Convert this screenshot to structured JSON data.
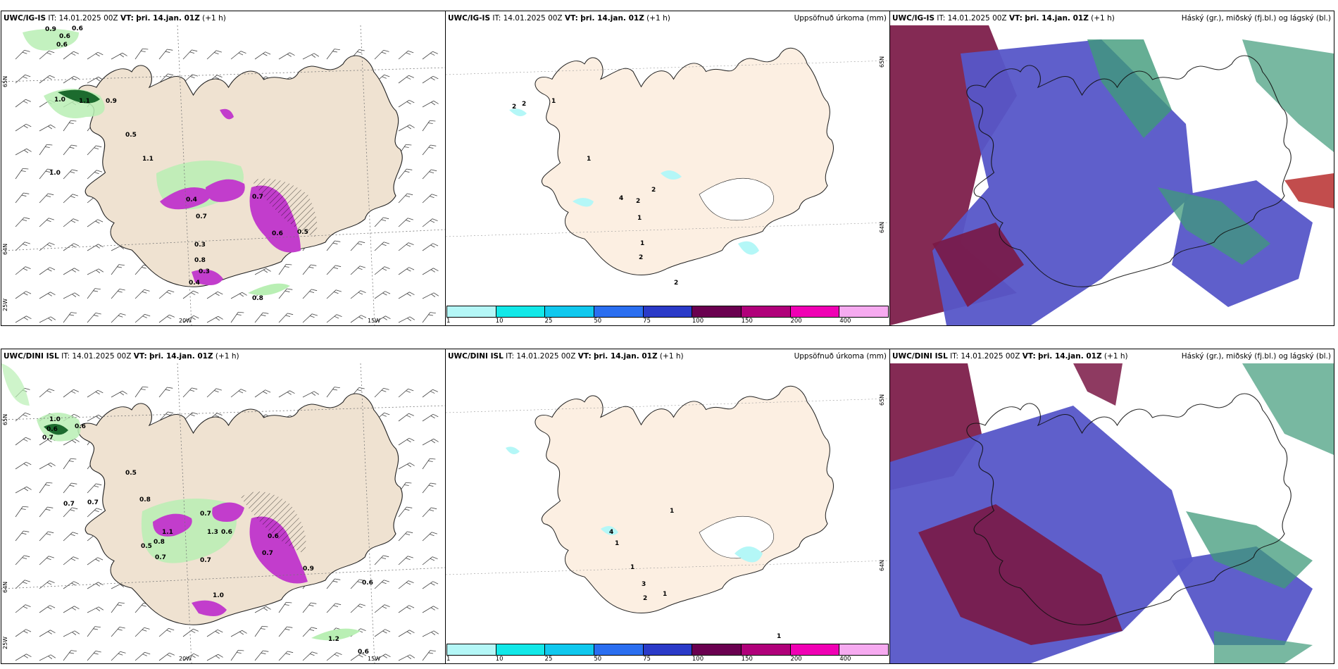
{
  "colors": {
    "land": "#efe2d1",
    "land_light": "#fcefe2",
    "coast": "#222222",
    "sea": "#ffffff",
    "green_light": "#b9efb4",
    "green_dark": "#1c6b2e",
    "magenta": "#c23dcc",
    "cloud_high": "#7a1845",
    "cloud_mid": "#5656c8",
    "cloud_low": "#3f9a79"
  },
  "panels": {
    "top_left": {
      "model": "UWC/IG-IS",
      "it_label": "IT:",
      "it_value": "14.01.2025 00Z",
      "vt_label": "VT:",
      "vt_value": "þri. 14.jan. 01Z",
      "offset": "(+1 h)",
      "grid": {
        "lat1": "65N",
        "lat2": "64N",
        "lon1": "20W",
        "lon2": "15W",
        "lon3": "25W"
      },
      "values": [
        "0.9",
        "0.6",
        "0.6",
        "0.6",
        "1.0",
        "1.1",
        "0.9",
        "0.5",
        "1.1",
        "1.0",
        "0.7",
        "0.3",
        "0.4",
        "0.7",
        "0.8",
        "0.6",
        "0.3",
        "0.5",
        "0.4",
        "0.8"
      ]
    },
    "top_mid": {
      "model": "UWC/IG-IS",
      "it_label": "IT:",
      "it_value": "14.01.2025 00Z",
      "vt_label": "VT:",
      "vt_value": "þri. 14.jan. 01Z",
      "offset": "(+1 h)",
      "field": "Uppsöfnuð úrkoma (mm)",
      "grid": {
        "lat1": "65N",
        "lat2": "64N"
      },
      "values": [
        "2",
        "2",
        "1",
        "1",
        "4",
        "2",
        "2",
        "1",
        "1",
        "2",
        "2"
      ]
    },
    "top_right": {
      "model": "UWC/IG-IS",
      "it_label": "IT:",
      "it_value": "14.01.2025 00Z",
      "vt_label": "VT:",
      "vt_value": "þri. 14.jan. 01Z",
      "offset": "(+1 h)",
      "field": "Háský (gr.), miðský (fj.bl.) og lágský (bl.)"
    },
    "bottom_left": {
      "model": "UWC/DINI ISL",
      "it_label": "IT:",
      "it_value": "14.01.2025 00Z",
      "vt_label": "VT:",
      "vt_value": "þri. 14.jan. 01Z",
      "offset": "(+1 h)",
      "grid": {
        "lat1": "65N",
        "lat2": "64N",
        "lon1": "20W",
        "lon2": "15W",
        "lon3": "25W"
      },
      "values": [
        "1.0",
        "0.6",
        "0.6",
        "0.7",
        "0.5",
        "0.7",
        "0.7",
        "0.8",
        "0.5",
        "0.8",
        "1.1",
        "0.7",
        "1.3",
        "0.6",
        "0.7",
        "0.6",
        "0.7",
        "0.7",
        "0.9",
        "1.0",
        "0.6",
        "1.2",
        "0.6"
      ]
    },
    "bottom_mid": {
      "model": "UWC/DINI ISL",
      "it_label": "IT:",
      "it_value": "14.01.2025 00Z",
      "vt_label": "VT:",
      "vt_value": "þri. 14.jan. 01Z",
      "offset": "(+1 h)",
      "field": "Uppsöfnuð úrkoma (mm)",
      "grid": {
        "lat1": "65N",
        "lat2": "64N"
      },
      "values": [
        "1",
        "4",
        "1",
        "1",
        "3",
        "2",
        "1",
        "1"
      ]
    },
    "bottom_right": {
      "model": "UWC/DINI ISL",
      "it_label": "IT:",
      "it_value": "14.01.2025 00Z",
      "vt_label": "VT:",
      "vt_value": "þri. 14.jan. 01Z",
      "offset": "(+1 h)",
      "field": "Háský (gr.), miðský (fj.bl.) og lágský (bl.)"
    }
  },
  "colorbar": {
    "ticks": [
      "1",
      "10",
      "25",
      "50",
      "75",
      "100",
      "150",
      "200",
      "400"
    ],
    "colors": [
      "#b4f7f7",
      "#12e8e8",
      "#10c8ee",
      "#2a6ef0",
      "#2a3ac8",
      "#6a0050",
      "#b0007a",
      "#f000b4",
      "#f6aaf0"
    ]
  }
}
